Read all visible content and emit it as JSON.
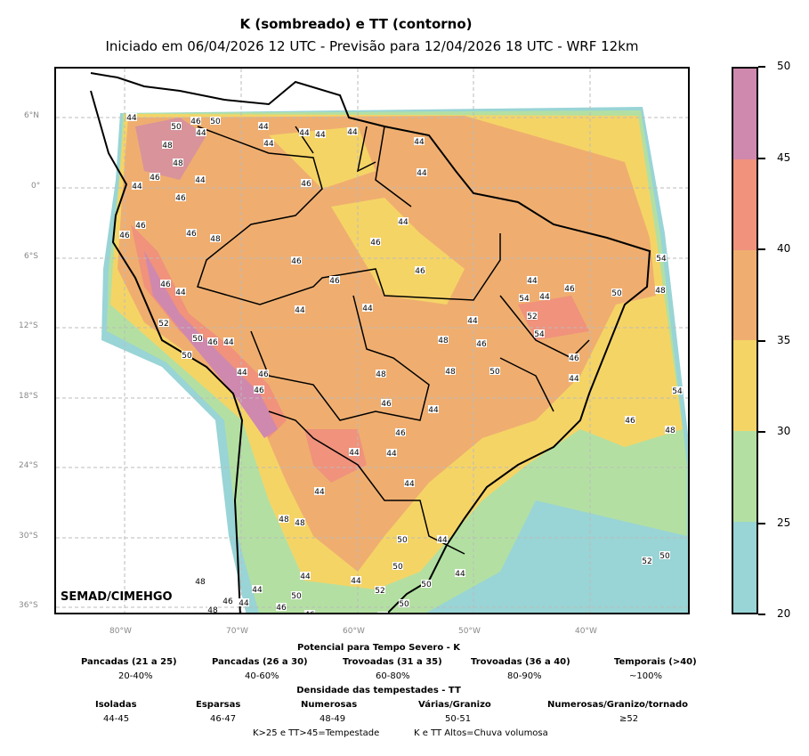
{
  "title": "K (sombreado) e TT (contorno)",
  "subtitle": "Iniciado em 06/04/2026 12 UTC - Previsão para 12/04/2026 18 UTC - WRF 12km",
  "signature": "SEMAD/CIMEHGO",
  "lat_ticks": [
    "6°N",
    "0°",
    "6°S",
    "12°S",
    "18°S",
    "24°S",
    "30°S",
    "36°S"
  ],
  "lon_ticks": [
    "80°W",
    "70°W",
    "60°W",
    "50°W",
    "40°W"
  ],
  "colorbar": {
    "ticks": [
      "50",
      "45",
      "40",
      "35",
      "30",
      "25",
      "20"
    ],
    "colors": [
      "#cf88ae",
      "#f0927c",
      "#efae70",
      "#f5d466",
      "#b3e0a2",
      "#99d4d6"
    ]
  },
  "contour_labels": [
    "44",
    "50",
    "46",
    "50",
    "44",
    "48",
    "48",
    "46",
    "44",
    "46",
    "46",
    "44",
    "46",
    "46",
    "48",
    "46",
    "44",
    "52",
    "50",
    "46",
    "44",
    "44",
    "44",
    "44",
    "44",
    "44",
    "44",
    "46",
    "44",
    "46",
    "46",
    "46",
    "46",
    "44",
    "44",
    "44",
    "46",
    "44",
    "54",
    "44",
    "46",
    "50",
    "54",
    "48",
    "52",
    "54",
    "50",
    "46",
    "44",
    "54",
    "46",
    "48",
    "48",
    "48",
    "48",
    "46",
    "44",
    "46",
    "44",
    "44",
    "44",
    "44",
    "48",
    "48",
    "50",
    "44",
    "50",
    "50",
    "44",
    "44",
    "52",
    "50",
    "44",
    "44",
    "50",
    "46",
    "46",
    "44",
    "44",
    "46",
    "48",
    "48",
    "52",
    "50",
    "44",
    "50",
    "44",
    "46",
    "46"
  ],
  "legend": {
    "k_title": "Potencial para Tempo Severo - K",
    "k_items": [
      {
        "label": "Pancadas (21 a 25)",
        "value": "20-40%"
      },
      {
        "label": "Pancadas (26 a 30)",
        "value": "40-60%"
      },
      {
        "label": "Trovoadas (31 a 35)",
        "value": "60-80%"
      },
      {
        "label": "Trovoadas (36 a 40)",
        "value": "80-90%"
      },
      {
        "label": "Temporais (>40)",
        "value": "~100%"
      }
    ],
    "tt_title": "Densidade das tempestades - TT",
    "tt_items": [
      {
        "label": "Isoladas",
        "value": "44-45"
      },
      {
        "label": "Esparsas",
        "value": "46-47"
      },
      {
        "label": "Numerosas",
        "value": "48-49"
      },
      {
        "label": "Várias/Granizo",
        "value": "50-51"
      },
      {
        "label": "Numerosas/Granizo/tornado",
        "value": "≥52"
      }
    ],
    "note1": "K>25 e TT>45=Tempestade",
    "note2": "K e TT Altos=Chuva volumosa"
  }
}
